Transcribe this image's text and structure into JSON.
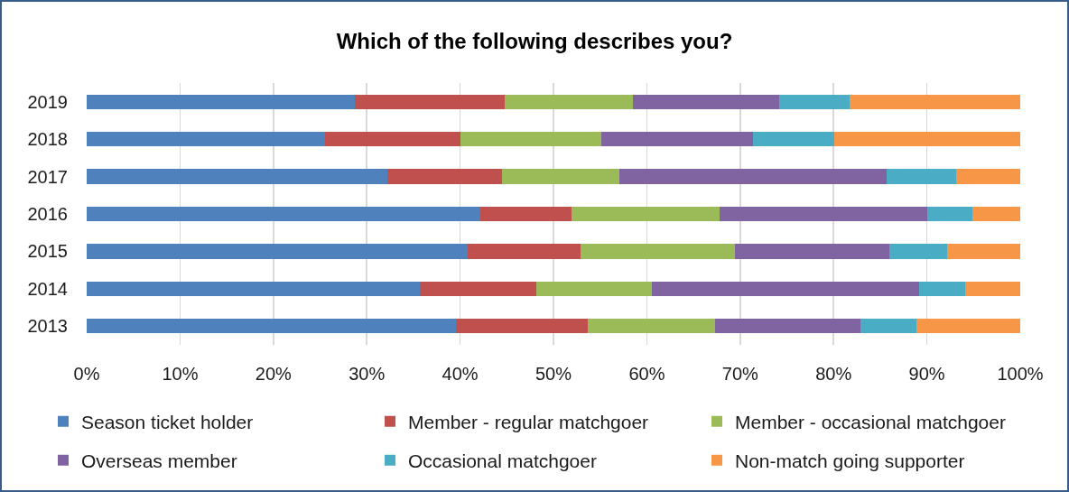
{
  "chart_data": {
    "type": "bar",
    "title": "Which of the following describes you?",
    "orientation": "horizontal",
    "stacked": true,
    "categories": [
      "2019",
      "2018",
      "2017",
      "2016",
      "2015",
      "2014",
      "2013"
    ],
    "series": [
      {
        "name": "Season ticket holder",
        "color": "#4f81bd",
        "values": [
          28.7,
          25.5,
          32.2,
          42.2,
          40.8,
          35.7,
          39.6
        ]
      },
      {
        "name": "Member - regular matchgoer",
        "color": "#c0504d",
        "values": [
          16.1,
          14.5,
          12.3,
          9.7,
          12.1,
          12.5,
          14.1
        ]
      },
      {
        "name": "Member - occasional matchgoer",
        "color": "#9bbb59",
        "values": [
          13.7,
          15.1,
          12.6,
          15.9,
          16.5,
          12.3,
          13.6
        ]
      },
      {
        "name": "Overseas member",
        "color": "#8064a2",
        "values": [
          15.7,
          16.3,
          28.6,
          22.2,
          16.6,
          28.7,
          15.6
        ]
      },
      {
        "name": "Occasional matchgoer",
        "color": "#4bacc6",
        "values": [
          7.5,
          8.7,
          7.4,
          4.9,
          6.2,
          4.9,
          6.0
        ]
      },
      {
        "name": "Non-match going supporter",
        "color": "#f79646",
        "values": [
          18.3,
          19.9,
          6.9,
          5.1,
          7.8,
          5.9,
          11.1
        ]
      }
    ],
    "xlim": [
      0,
      100
    ],
    "xticks": [
      {
        "value": 0,
        "label": "0%"
      },
      {
        "value": 10,
        "label": "10%"
      },
      {
        "value": 20,
        "label": "20%"
      },
      {
        "value": 30,
        "label": "30%"
      },
      {
        "value": 40,
        "label": "40%"
      },
      {
        "value": 50,
        "label": "50%"
      },
      {
        "value": 60,
        "label": "60%"
      },
      {
        "value": 70,
        "label": "70%"
      },
      {
        "value": 80,
        "label": "80%"
      },
      {
        "value": 90,
        "label": "90%"
      },
      {
        "value": 100,
        "label": "100%"
      }
    ],
    "grid": "x",
    "legend": "bottom"
  }
}
